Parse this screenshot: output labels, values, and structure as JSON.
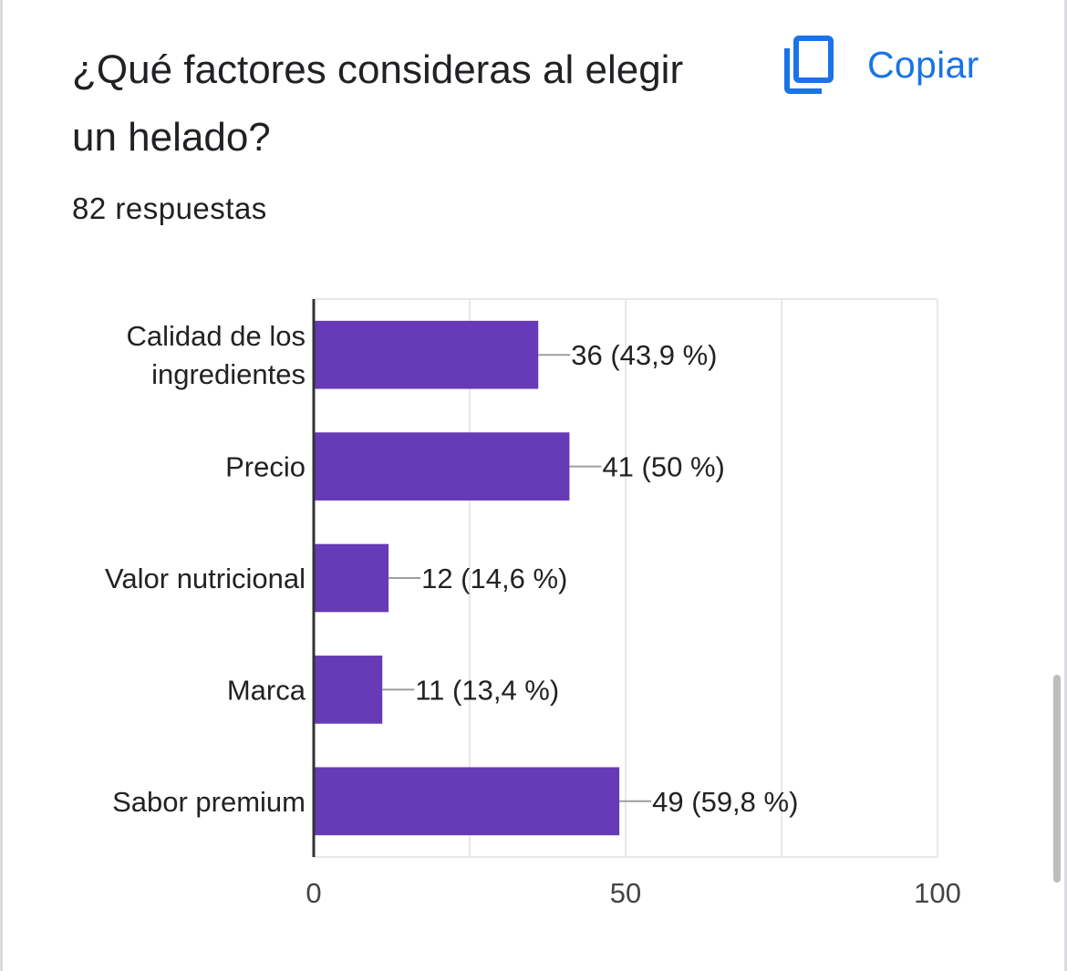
{
  "question": {
    "title": "¿Qué factores consideras al elegir un helado?",
    "response_count": "82 respuestas"
  },
  "copy_button": {
    "label": "Copiar",
    "icon": "copy-icon"
  },
  "colors": {
    "bar": "#673ab7",
    "accent": "#1a73e8",
    "grid": "#e8e8e8",
    "axis": "#333333",
    "text": "#222222"
  },
  "chart_data": {
    "type": "bar",
    "orientation": "horizontal",
    "categories": [
      [
        "Calidad de los",
        "ingredientes"
      ],
      [
        "Precio"
      ],
      [
        "Valor nutricional"
      ],
      [
        "Marca"
      ],
      [
        "Sabor premium"
      ]
    ],
    "values": [
      36,
      41,
      12,
      11,
      49
    ],
    "data_labels": [
      "36 (43,9 %)",
      "41 (50 %)",
      "12 (14,6 %)",
      "11 (13,4 %)",
      "49 (59,8 %)"
    ],
    "xlim": [
      0,
      100
    ],
    "x_ticks": [
      0,
      50,
      100
    ],
    "x_tick_labels": [
      "0",
      "50",
      "100"
    ],
    "minor_gridlines": [
      25,
      75
    ],
    "grid": true,
    "legend": "none"
  }
}
